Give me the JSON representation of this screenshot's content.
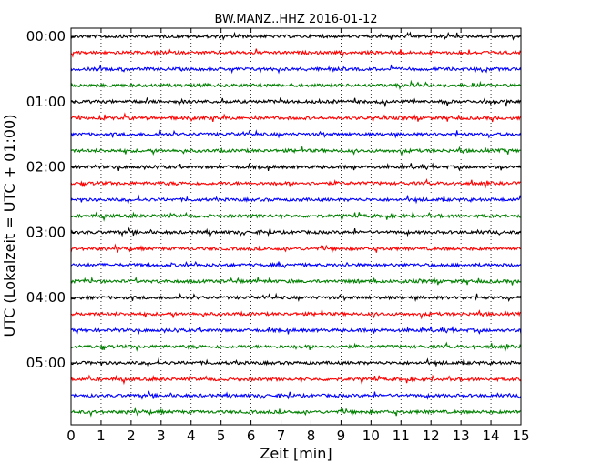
{
  "chart_data": {
    "type": "line",
    "title": "BW.MANZ..HHZ 2016-01-12",
    "xlabel": "Zeit  [min]",
    "ylabel": "UTC (Lokalzeit = UTC + 01:00)",
    "xlim": [
      0,
      15
    ],
    "x_ticks": [
      "0",
      "1",
      "2",
      "3",
      "4",
      "5",
      "6",
      "7",
      "8",
      "9",
      "10",
      "11",
      "12",
      "13",
      "14",
      "15"
    ],
    "y_ticks": [
      "00:00",
      "01:00",
      "02:00",
      "03:00",
      "04:00",
      "05:00"
    ],
    "grid": "vertical dotted",
    "trace_interval_min": 15,
    "colors": [
      "#000000",
      "#ff0000",
      "#0000ff",
      "#008000"
    ],
    "traces": [
      {
        "start": "00:00",
        "color": "#000000"
      },
      {
        "start": "00:15",
        "color": "#ff0000"
      },
      {
        "start": "00:30",
        "color": "#0000ff"
      },
      {
        "start": "00:45",
        "color": "#008000"
      },
      {
        "start": "01:00",
        "color": "#000000"
      },
      {
        "start": "01:15",
        "color": "#ff0000"
      },
      {
        "start": "01:30",
        "color": "#0000ff"
      },
      {
        "start": "01:45",
        "color": "#008000"
      },
      {
        "start": "02:00",
        "color": "#000000"
      },
      {
        "start": "02:15",
        "color": "#ff0000"
      },
      {
        "start": "02:30",
        "color": "#0000ff"
      },
      {
        "start": "02:45",
        "color": "#008000"
      },
      {
        "start": "03:00",
        "color": "#000000"
      },
      {
        "start": "03:15",
        "color": "#ff0000"
      },
      {
        "start": "03:30",
        "color": "#0000ff"
      },
      {
        "start": "03:45",
        "color": "#008000"
      },
      {
        "start": "04:00",
        "color": "#000000"
      },
      {
        "start": "04:15",
        "color": "#ff0000"
      },
      {
        "start": "04:30",
        "color": "#0000ff"
      },
      {
        "start": "04:45",
        "color": "#008000"
      },
      {
        "start": "05:00",
        "color": "#000000"
      },
      {
        "start": "05:15",
        "color": "#ff0000"
      },
      {
        "start": "05:30",
        "color": "#0000ff"
      },
      {
        "start": "05:45",
        "color": "#008000"
      }
    ]
  }
}
